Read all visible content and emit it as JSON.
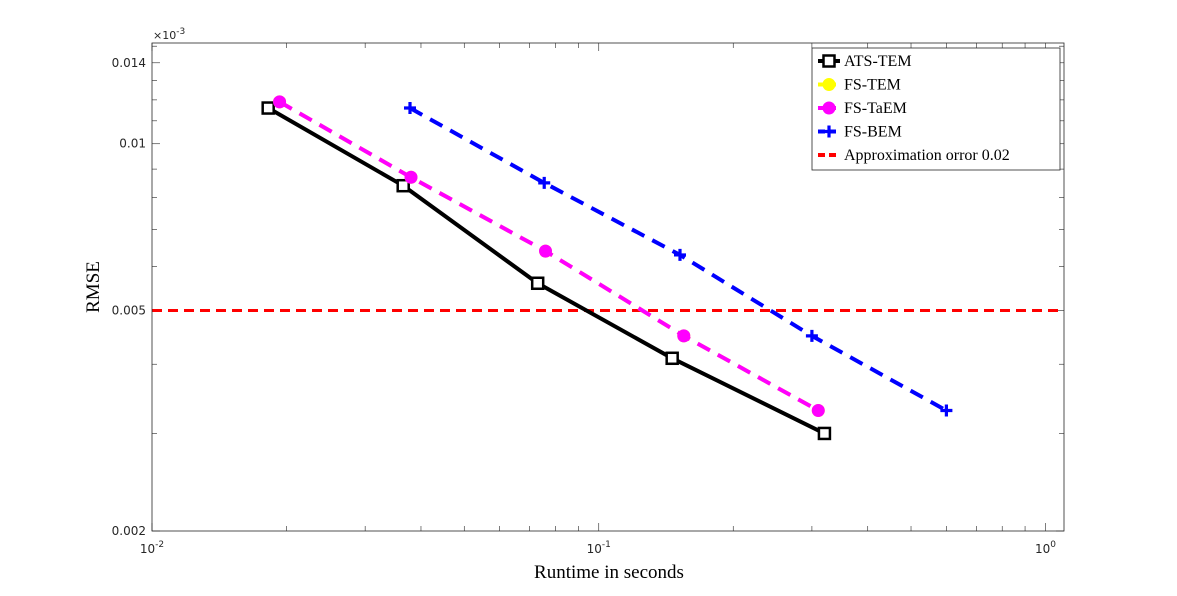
{
  "chart_data": {
    "type": "line",
    "xscale": "log",
    "yscale": "log",
    "xlabel": "Runtime in seconds",
    "ylabel": "RMSE",
    "xlim": [
      0.01,
      1.1
    ],
    "ylim": [
      0.002,
      0.0152
    ],
    "x_ticks": [
      {
        "value": 0.01,
        "base": "10",
        "exp": "-2"
      },
      {
        "value": 0.1,
        "base": "10",
        "exp": "-1"
      },
      {
        "value": 1,
        "base": "10",
        "exp": "0"
      }
    ],
    "y_ticks": [
      {
        "value": 0.002,
        "label": "0.002"
      },
      {
        "value": 0.005,
        "label": "0.005"
      },
      {
        "value": 0.01,
        "label": "0.01"
      },
      {
        "value": 0.014,
        "label": "0.014"
      }
    ],
    "y_multiplier": {
      "base": "×10",
      "exp": "-3"
    },
    "legend_position": "top-right",
    "series": [
      {
        "name": "ATS-TEM",
        "color": "#000000",
        "dash": "solid",
        "marker": "square",
        "x": [
          0.0182,
          0.0365,
          0.073,
          0.146,
          0.32
        ],
        "y": [
          0.0116,
          0.0084,
          0.0056,
          0.0041,
          0.003
        ]
      },
      {
        "name": "FS-TEM",
        "color": "#ffff00",
        "dash": "dashed",
        "marker": "circle",
        "x": [
          0.0193,
          0.038,
          0.076,
          0.155,
          0.31
        ],
        "y": [
          0.0119,
          0.0087,
          0.0064,
          0.0045,
          0.0033
        ]
      },
      {
        "name": "FS-TaEM",
        "color": "#ff00ff",
        "dash": "dashed",
        "marker": "circle",
        "x": [
          0.0193,
          0.038,
          0.076,
          0.155,
          0.31
        ],
        "y": [
          0.0119,
          0.0087,
          0.0064,
          0.0045,
          0.0033
        ]
      },
      {
        "name": "FS-BEM",
        "color": "#0000ff",
        "dash": "dashed",
        "marker": "plus",
        "x": [
          0.0378,
          0.0755,
          0.152,
          0.3,
          0.6
        ],
        "y": [
          0.0116,
          0.0085,
          0.0063,
          0.0045,
          0.0033
        ]
      }
    ],
    "reference_line": {
      "name": "Approximation orror 0.02",
      "color": "#ff0000",
      "dash": "dashed",
      "y": 0.005
    }
  }
}
